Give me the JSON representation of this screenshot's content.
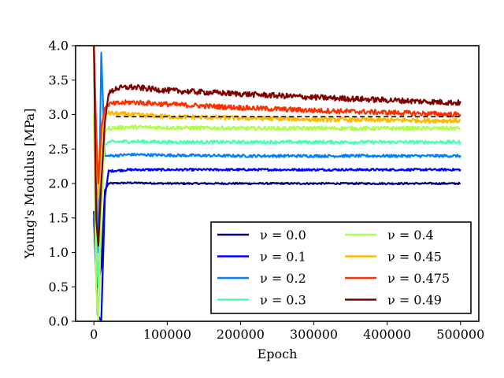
{
  "chart_data": {
    "type": "line",
    "title": "",
    "xlabel": "Epoch",
    "ylabel": "Young's Modulus [MPa]",
    "xlim": [
      -25000,
      525000
    ],
    "ylim": [
      0.0,
      4.0
    ],
    "xticks": [
      0,
      100000,
      200000,
      300000,
      400000,
      500000
    ],
    "xtick_labels": [
      "0",
      "100000",
      "200000",
      "300000",
      "400000",
      "500000"
    ],
    "yticks": [
      0.0,
      0.5,
      1.0,
      1.5,
      2.0,
      2.5,
      3.0,
      3.5,
      4.0
    ],
    "ytick_labels": [
      "0.0",
      "0.5",
      "1.0",
      "1.5",
      "2.0",
      "2.5",
      "3.0",
      "3.5",
      "4.0"
    ],
    "grid": false,
    "legend": {
      "placement": "lower-right",
      "columns": 2
    },
    "series": [
      {
        "name": "ν = 0.0",
        "color": "#00007f",
        "x": [
          0,
          5000,
          10000,
          15000,
          20000,
          50000,
          100000,
          200000,
          300000,
          400000,
          500000
        ],
        "values": [
          1.6,
          0.5,
          0.8,
          1.9,
          2.0,
          2.01,
          2.0,
          2.0,
          2.0,
          2.0,
          2.0
        ]
      },
      {
        "name": "ν = 0.1",
        "color": "#0000ff",
        "x": [
          0,
          5000,
          10000,
          15000,
          20000,
          50000,
          100000,
          200000,
          300000,
          400000,
          500000
        ],
        "values": [
          1.5,
          0.1,
          0.0,
          1.8,
          2.18,
          2.2,
          2.2,
          2.2,
          2.2,
          2.2,
          2.2
        ]
      },
      {
        "name": "ν = 0.2",
        "color": "#0080ff",
        "x": [
          0,
          3000,
          6000,
          10000,
          15000,
          20000,
          50000,
          100000,
          200000,
          300000,
          400000,
          500000
        ],
        "values": [
          4.0,
          2.0,
          1.0,
          3.9,
          2.4,
          2.4,
          2.42,
          2.41,
          2.4,
          2.4,
          2.4,
          2.4
        ]
      },
      {
        "name": "ν = 0.3",
        "color": "#49ffad",
        "x": [
          0,
          3000,
          6000,
          10000,
          15000,
          20000,
          50000,
          100000,
          200000,
          300000,
          400000,
          500000
        ],
        "values": [
          4.0,
          1.2,
          0.5,
          2.0,
          2.55,
          2.6,
          2.61,
          2.6,
          2.6,
          2.6,
          2.6,
          2.6
        ]
      },
      {
        "name": "ν = 0.4",
        "color": "#adff49",
        "x": [
          0,
          3000,
          6000,
          10000,
          15000,
          20000,
          50000,
          100000,
          200000,
          300000,
          400000,
          500000
        ],
        "values": [
          3.0,
          0.5,
          0.0,
          1.5,
          2.75,
          2.8,
          2.82,
          2.81,
          2.8,
          2.8,
          2.8,
          2.8
        ]
      },
      {
        "name": "ν = 0.45",
        "color": "#ffb900",
        "x": [
          0,
          3000,
          6000,
          10000,
          15000,
          20000,
          50000,
          100000,
          200000,
          300000,
          400000,
          500000
        ],
        "values": [
          4.0,
          2.5,
          1.8,
          2.6,
          3.0,
          3.02,
          3.0,
          2.97,
          2.95,
          2.93,
          2.92,
          2.91
        ]
      },
      {
        "name": "ν = 0.475",
        "color": "#ff3000",
        "x": [
          0,
          3000,
          6000,
          10000,
          15000,
          20000,
          50000,
          100000,
          200000,
          300000,
          400000,
          500000
        ],
        "values": [
          4.0,
          2.8,
          2.0,
          2.8,
          3.1,
          3.15,
          3.18,
          3.15,
          3.1,
          3.06,
          3.03,
          3.0
        ]
      },
      {
        "name": "ν = 0.49",
        "color": "#7f0000",
        "x": [
          0,
          3000,
          6000,
          10000,
          15000,
          20000,
          30000,
          50000,
          100000,
          200000,
          300000,
          400000,
          500000
        ],
        "values": [
          4.0,
          1.5,
          1.1,
          2.0,
          2.9,
          3.3,
          3.38,
          3.4,
          3.35,
          3.3,
          3.25,
          3.21,
          3.17
        ]
      }
    ],
    "reference_lines": [
      {
        "color": "#000000",
        "style": "dashed",
        "y": 2.97,
        "x_range": [
          30000,
          500000
        ]
      }
    ]
  }
}
